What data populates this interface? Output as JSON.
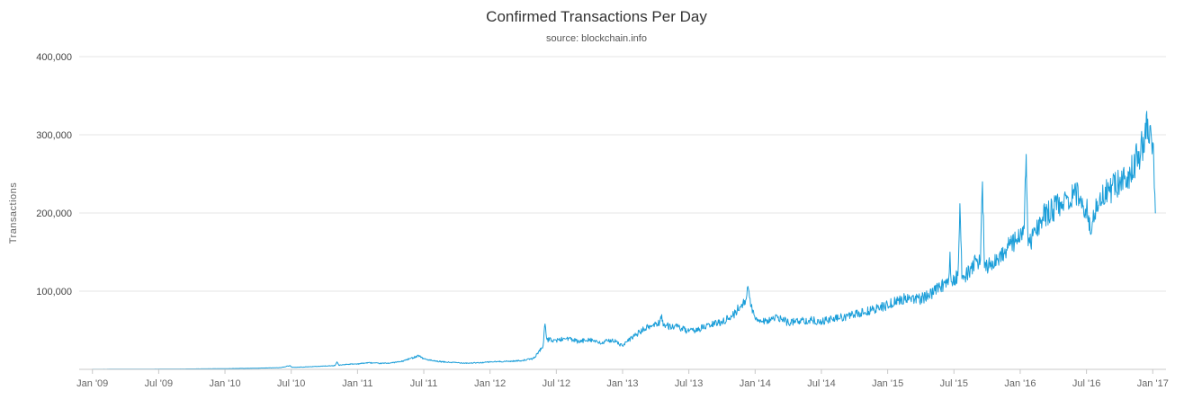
{
  "page": {
    "background": "#ffffff"
  },
  "chart_data": {
    "type": "line",
    "title": "Confirmed Transactions Per Day",
    "subtitle": "source: blockchain.info",
    "xlabel": "",
    "ylabel": "Transactions",
    "ylim": [
      0,
      400000
    ],
    "yticks": [
      100000,
      200000,
      300000,
      400000
    ],
    "xlim_years": [
      2008.9,
      2017.1
    ],
    "grid": "horizontal",
    "legend": "none",
    "xticks": [
      {
        "pos": 2009.0,
        "label": "Jan '09"
      },
      {
        "pos": 2009.5,
        "label": "Jul '09"
      },
      {
        "pos": 2010.0,
        "label": "Jan '10"
      },
      {
        "pos": 2010.5,
        "label": "Jul '10"
      },
      {
        "pos": 2011.0,
        "label": "Jan '11"
      },
      {
        "pos": 2011.5,
        "label": "Jul '11"
      },
      {
        "pos": 2012.0,
        "label": "Jan '12"
      },
      {
        "pos": 2012.5,
        "label": "Jul '12"
      },
      {
        "pos": 2013.0,
        "label": "Jan '13"
      },
      {
        "pos": 2013.5,
        "label": "Jul '13"
      },
      {
        "pos": 2014.0,
        "label": "Jan '14"
      },
      {
        "pos": 2014.5,
        "label": "Jul '14"
      },
      {
        "pos": 2015.0,
        "label": "Jan '15"
      },
      {
        "pos": 2015.5,
        "label": "Jul '15"
      },
      {
        "pos": 2016.0,
        "label": "Jan '16"
      },
      {
        "pos": 2016.5,
        "label": "Jul '16"
      },
      {
        "pos": 2017.0,
        "label": "Jan '17"
      }
    ],
    "series": [
      {
        "name": "Transactions",
        "color": "#1b9ed9",
        "points": [
          [
            2009.0,
            100
          ],
          [
            2009.08,
            160
          ],
          [
            2009.17,
            210
          ],
          [
            2009.25,
            260
          ],
          [
            2009.33,
            310
          ],
          [
            2009.42,
            360
          ],
          [
            2009.5,
            410
          ],
          [
            2009.58,
            460
          ],
          [
            2009.67,
            510
          ],
          [
            2009.75,
            560
          ],
          [
            2009.83,
            650
          ],
          [
            2009.92,
            760
          ],
          [
            2010.0,
            900
          ],
          [
            2010.08,
            1100
          ],
          [
            2010.17,
            1300
          ],
          [
            2010.25,
            1500
          ],
          [
            2010.33,
            1800
          ],
          [
            2010.42,
            2200
          ],
          [
            2010.49,
            4800
          ],
          [
            2010.505,
            2600
          ],
          [
            2010.58,
            2900
          ],
          [
            2010.67,
            3600
          ],
          [
            2010.75,
            4200
          ],
          [
            2010.83,
            4800
          ],
          [
            2010.845,
            9500
          ],
          [
            2010.86,
            5200
          ],
          [
            2010.92,
            6500
          ],
          [
            2011.0,
            7000
          ],
          [
            2011.08,
            8500
          ],
          [
            2011.17,
            7600
          ],
          [
            2011.25,
            8200
          ],
          [
            2011.33,
            10000
          ],
          [
            2011.42,
            15000
          ],
          [
            2011.46,
            18000
          ],
          [
            2011.5,
            13500
          ],
          [
            2011.58,
            10500
          ],
          [
            2011.67,
            9200
          ],
          [
            2011.75,
            8600
          ],
          [
            2011.83,
            8000
          ],
          [
            2011.92,
            8400
          ],
          [
            2012.0,
            9500
          ],
          [
            2012.08,
            10000
          ],
          [
            2012.17,
            10500
          ],
          [
            2012.25,
            11500
          ],
          [
            2012.33,
            14000
          ],
          [
            2012.4,
            30000
          ],
          [
            2012.415,
            58000
          ],
          [
            2012.43,
            38000
          ],
          [
            2012.5,
            37000
          ],
          [
            2012.58,
            40000
          ],
          [
            2012.67,
            35000
          ],
          [
            2012.75,
            39000
          ],
          [
            2012.83,
            33000
          ],
          [
            2012.92,
            38000
          ],
          [
            2013.0,
            30000
          ],
          [
            2013.08,
            42000
          ],
          [
            2013.17,
            52000
          ],
          [
            2013.25,
            58000
          ],
          [
            2013.28,
            60000
          ],
          [
            2013.295,
            70000
          ],
          [
            2013.31,
            56000
          ],
          [
            2013.42,
            54000
          ],
          [
            2013.5,
            48000
          ],
          [
            2013.58,
            52000
          ],
          [
            2013.67,
            57000
          ],
          [
            2013.75,
            61000
          ],
          [
            2013.83,
            68000
          ],
          [
            2013.92,
            88000
          ],
          [
            2013.95,
            102000
          ],
          [
            2013.97,
            80000
          ],
          [
            2014.0,
            65000
          ],
          [
            2014.08,
            62000
          ],
          [
            2014.17,
            66000
          ],
          [
            2014.25,
            60000
          ],
          [
            2014.33,
            62000
          ],
          [
            2014.42,
            63000
          ],
          [
            2014.5,
            61000
          ],
          [
            2014.58,
            64000
          ],
          [
            2014.67,
            67000
          ],
          [
            2014.75,
            70000
          ],
          [
            2014.83,
            73000
          ],
          [
            2014.92,
            78000
          ],
          [
            2015.0,
            82000
          ],
          [
            2015.08,
            88000
          ],
          [
            2015.17,
            92000
          ],
          [
            2015.25,
            90000
          ],
          [
            2015.33,
            97000
          ],
          [
            2015.42,
            108000
          ],
          [
            2015.46,
            115000
          ],
          [
            2015.47,
            150000
          ],
          [
            2015.48,
            112000
          ],
          [
            2015.53,
            120000
          ],
          [
            2015.545,
            212000
          ],
          [
            2015.56,
            116000
          ],
          [
            2015.58,
            118000
          ],
          [
            2015.67,
            138000
          ],
          [
            2015.7,
            140000
          ],
          [
            2015.715,
            240000
          ],
          [
            2015.73,
            130000
          ],
          [
            2015.83,
            142000
          ],
          [
            2015.92,
            158000
          ],
          [
            2016.0,
            170000
          ],
          [
            2016.03,
            180000
          ],
          [
            2016.045,
            275000
          ],
          [
            2016.06,
            158000
          ],
          [
            2016.17,
            195000
          ],
          [
            2016.25,
            205000
          ],
          [
            2016.33,
            215000
          ],
          [
            2016.42,
            225000
          ],
          [
            2016.5,
            205000
          ],
          [
            2016.54,
            178000
          ],
          [
            2016.58,
            215000
          ],
          [
            2016.67,
            228000
          ],
          [
            2016.75,
            238000
          ],
          [
            2016.83,
            252000
          ],
          [
            2016.92,
            285000
          ],
          [
            2016.94,
            300000
          ],
          [
            2016.955,
            330000
          ],
          [
            2016.97,
            290000
          ],
          [
            2017.0,
            290000
          ],
          [
            2017.02,
            200000
          ]
        ]
      }
    ],
    "appearance": {
      "line_width": 1,
      "noise_fraction": 0.08,
      "grid_color": "#e6e6e6",
      "axis_color": "#c8c8c8",
      "tick_label_color": "#666666",
      "title_color": "#333333"
    }
  }
}
